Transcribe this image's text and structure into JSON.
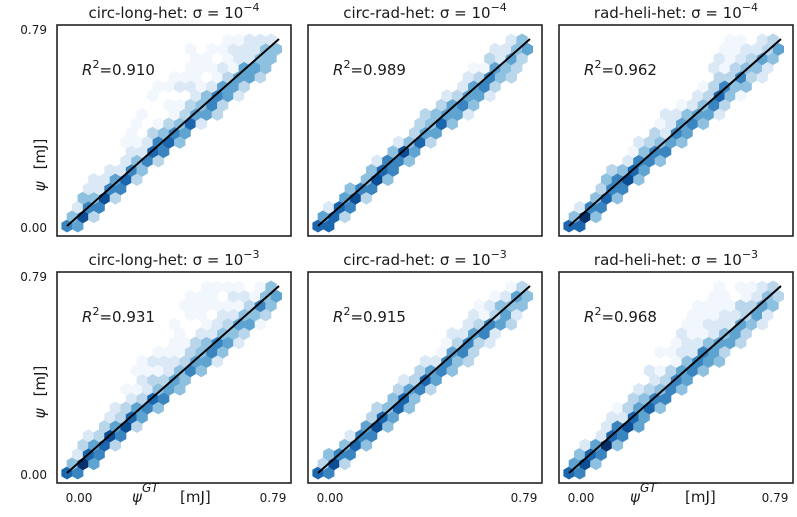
{
  "figure": {
    "x_axis_label_symbol": "ψ",
    "x_axis_label_sup": "GT",
    "x_axis_label_unit": "[mJ]",
    "y_axis_label_symbol": "ψ",
    "y_axis_label_unit": "[mJ]",
    "colormap": [
      "#f2f7fd",
      "#dbe9f6",
      "#b9d6ea",
      "#8ec0df",
      "#5fa3d0",
      "#3a85c0",
      "#1c66ad",
      "#0c4d93",
      "#08306b"
    ],
    "fit_line_color": "#000000"
  },
  "chart_data": [
    {
      "type": "hexbin",
      "dataset": "circ-long-het",
      "sigma_exp": "−4",
      "title_prefix": "circ-long-het: σ = 10",
      "r2_value": "=0.910",
      "r2_label": "R",
      "r2_sup": "2",
      "xlim": [
        0.0,
        0.79
      ],
      "ylim": [
        0.0,
        0.79
      ],
      "xticks": [
        "0.00",
        "0.79"
      ],
      "yticks": [
        "0.00",
        "0.79"
      ],
      "fit_line": [
        [
          0.0,
          0.0
        ],
        [
          0.79,
          0.79
        ]
      ],
      "spread": 0.62,
      "skew": 1.0
    },
    {
      "type": "hexbin",
      "dataset": "circ-rad-het",
      "sigma_exp": "−4",
      "title_prefix": "circ-rad-het: σ = 10",
      "r2_value": "=0.989",
      "r2_label": "R",
      "r2_sup": "2",
      "xlim": [
        0.0,
        0.79
      ],
      "ylim": [
        0.0,
        0.79
      ],
      "xticks": [
        "0.00",
        "0.79"
      ],
      "yticks": [
        "0.00",
        "0.79"
      ],
      "fit_line": [
        [
          0.0,
          0.0
        ],
        [
          0.79,
          0.79
        ]
      ],
      "spread": 0.12,
      "skew": 0.2
    },
    {
      "type": "hexbin",
      "dataset": "rad-heli-het",
      "sigma_exp": "−4",
      "title_prefix": "rad-heli-het: σ = 10",
      "r2_value": "=0.962",
      "r2_label": "R",
      "r2_sup": "2",
      "xlim": [
        0.0,
        0.79
      ],
      "ylim": [
        0.0,
        0.79
      ],
      "xticks": [
        "0.00",
        "0.79"
      ],
      "yticks": [
        "0.00",
        "0.79"
      ],
      "fit_line": [
        [
          0.0,
          0.0
        ],
        [
          0.79,
          0.79
        ]
      ],
      "spread": 0.28,
      "skew": 0.6
    },
    {
      "type": "hexbin",
      "dataset": "circ-long-het",
      "sigma_exp": "−3",
      "title_prefix": "circ-long-het: σ = 10",
      "r2_value": "=0.931",
      "r2_label": "R",
      "r2_sup": "2",
      "xlim": [
        0.0,
        0.79
      ],
      "ylim": [
        0.0,
        0.79
      ],
      "xticks": [
        "0.00",
        "0.79"
      ],
      "yticks": [
        "0.00",
        "0.79"
      ],
      "fit_line": [
        [
          0.0,
          0.0
        ],
        [
          0.79,
          0.79
        ]
      ],
      "spread": 0.55,
      "skew": 1.0
    },
    {
      "type": "hexbin",
      "dataset": "circ-rad-het",
      "sigma_exp": "−3",
      "title_prefix": "circ-rad-het: σ = 10",
      "r2_value": "=0.915",
      "r2_label": "R",
      "r2_sup": "2",
      "xlim": [
        0.0,
        0.79
      ],
      "ylim": [
        0.0,
        0.79
      ],
      "xticks": [
        "0.00",
        "0.79"
      ],
      "yticks": [
        "0.00",
        "0.79"
      ],
      "fit_line": [
        [
          0.0,
          0.0
        ],
        [
          0.79,
          0.79
        ]
      ],
      "spread": 0.16,
      "skew": 0.1
    },
    {
      "type": "hexbin",
      "dataset": "rad-heli-het",
      "sigma_exp": "−3",
      "title_prefix": "rad-heli-het: σ = 10",
      "r2_value": "=0.968",
      "r2_label": "R",
      "r2_sup": "2",
      "xlim": [
        0.0,
        0.79
      ],
      "ylim": [
        0.0,
        0.79
      ],
      "xticks": [
        "0.00",
        "0.79"
      ],
      "yticks": [
        "0.00",
        "0.79"
      ],
      "fit_line": [
        [
          0.0,
          0.0
        ],
        [
          0.79,
          0.79
        ]
      ],
      "spread": 0.42,
      "skew": 0.9
    }
  ]
}
